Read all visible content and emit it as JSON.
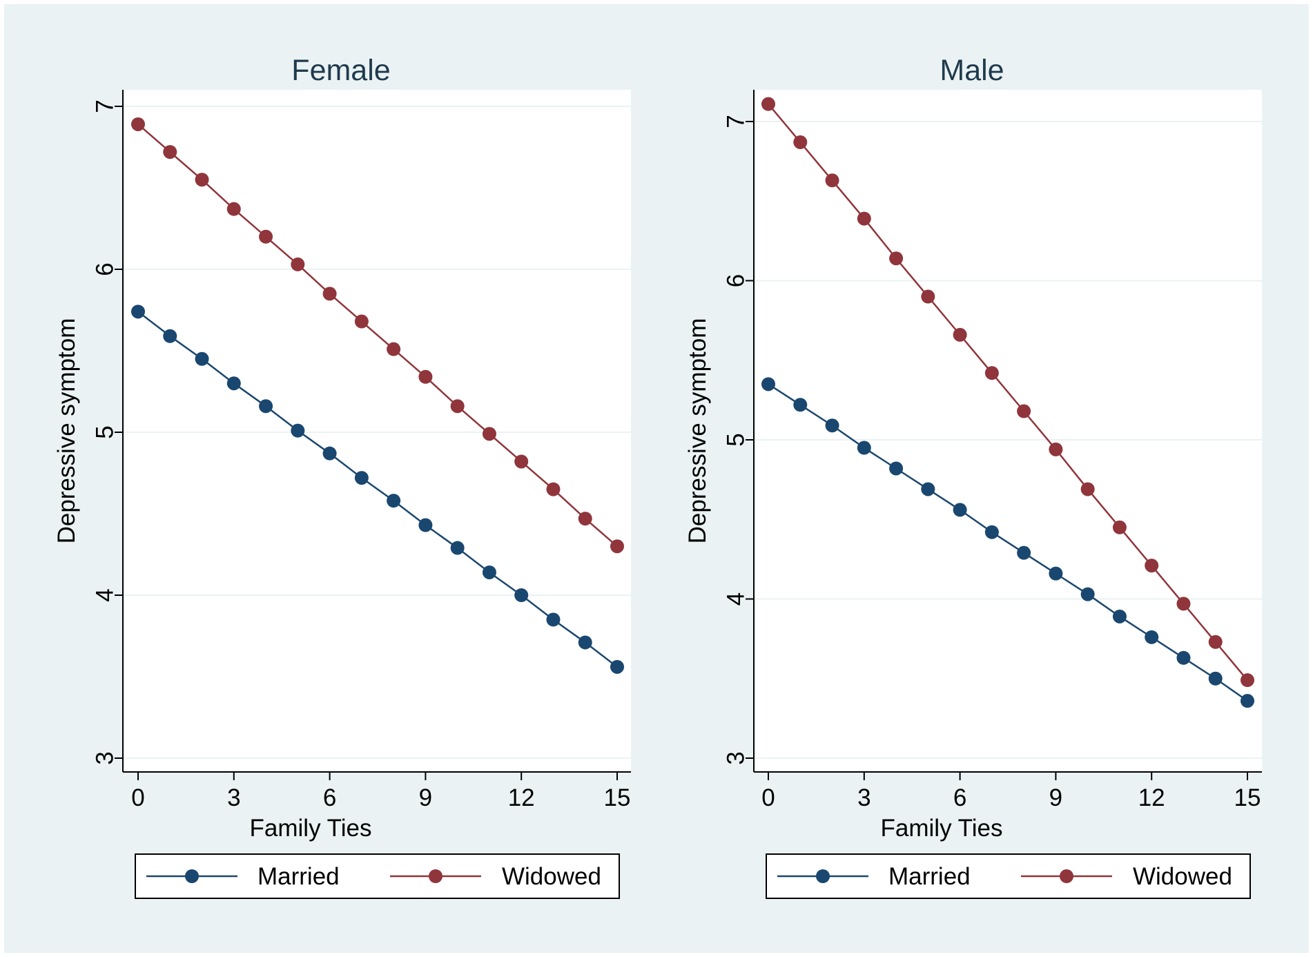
{
  "colors": {
    "married": "#1a476f",
    "widowed": "#90353b",
    "background": "#eaf2f3",
    "plot_background": "#ffffff",
    "grid": "#eaf2f3"
  },
  "chart_data": [
    {
      "type": "line",
      "title": "Female",
      "xlabel": "Family Ties",
      "ylabel": "Depressive symptom",
      "xlim": [
        0,
        15
      ],
      "ylim": [
        3,
        7
      ],
      "xticks": [
        0,
        3,
        6,
        9,
        12,
        15
      ],
      "yticks": [
        3,
        4,
        5,
        6,
        7
      ],
      "grid": true,
      "legend_position": "bottom",
      "x": [
        0,
        1,
        2,
        3,
        4,
        5,
        6,
        7,
        8,
        9,
        10,
        11,
        12,
        13,
        14,
        15
      ],
      "series": [
        {
          "name": "Married",
          "color": "#1a476f",
          "values": [
            5.74,
            5.59,
            5.45,
            5.3,
            5.16,
            5.01,
            4.87,
            4.72,
            4.58,
            4.43,
            4.29,
            4.14,
            4.0,
            3.85,
            3.71,
            3.56
          ]
        },
        {
          "name": "Widowed",
          "color": "#90353b",
          "values": [
            6.89,
            6.72,
            6.55,
            6.37,
            6.2,
            6.03,
            5.85,
            5.68,
            5.51,
            5.34,
            5.16,
            4.99,
            4.82,
            4.65,
            4.47,
            4.3
          ]
        }
      ]
    },
    {
      "type": "line",
      "title": "Male",
      "xlabel": "Family Ties",
      "ylabel": "Depressive symptom",
      "xlim": [
        0,
        15
      ],
      "ylim": [
        3,
        7
      ],
      "xticks": [
        0,
        3,
        6,
        9,
        12,
        15
      ],
      "yticks": [
        3,
        4,
        5,
        6,
        7
      ],
      "grid": true,
      "legend_position": "bottom",
      "x": [
        0,
        1,
        2,
        3,
        4,
        5,
        6,
        7,
        8,
        9,
        10,
        11,
        12,
        13,
        14,
        15
      ],
      "series": [
        {
          "name": "Married",
          "color": "#1a476f",
          "values": [
            5.35,
            5.22,
            5.09,
            4.95,
            4.82,
            4.69,
            4.56,
            4.42,
            4.29,
            4.16,
            4.03,
            3.89,
            3.76,
            3.63,
            3.5,
            3.36
          ]
        },
        {
          "name": "Widowed",
          "color": "#90353b",
          "values": [
            7.11,
            6.87,
            6.63,
            6.39,
            6.14,
            5.9,
            5.66,
            5.42,
            5.18,
            4.94,
            4.69,
            4.45,
            4.21,
            3.97,
            3.73,
            3.49
          ]
        }
      ]
    }
  ]
}
